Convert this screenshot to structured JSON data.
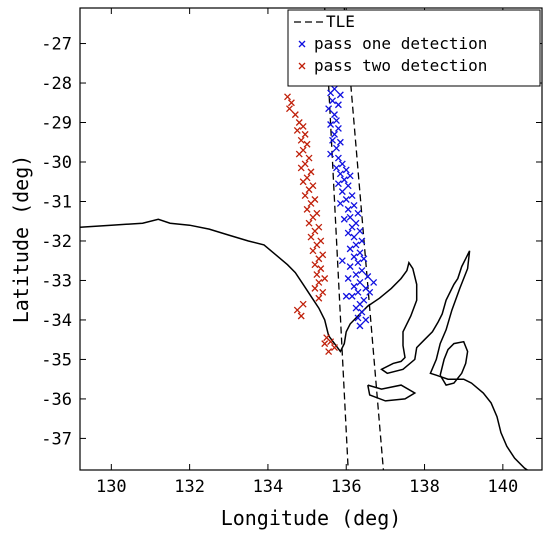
{
  "chart_data": {
    "type": "scatter",
    "title": "",
    "xlabel": "Longitude (deg)",
    "ylabel": "Latitude (deg)",
    "xlim": [
      129.2,
      141.0
    ],
    "ylim": [
      -37.8,
      -26.1
    ],
    "xticks": [
      130,
      132,
      134,
      136,
      138,
      140
    ],
    "yticks": [
      -27,
      -28,
      -29,
      -30,
      -31,
      -32,
      -33,
      -34,
      -35,
      -36,
      -37
    ],
    "grid": false,
    "legend_position": "top-right",
    "legend": [
      {
        "label": "TLE",
        "style": "dashed-line",
        "color": "#000000"
      },
      {
        "label": "pass one detection",
        "style": "x-marker",
        "color": "#1010e0"
      },
      {
        "label": "pass two detection",
        "style": "x-marker",
        "color": "#c0200a"
      }
    ],
    "tle_tracks": [
      {
        "points": [
          [
            135.45,
            -26.1
          ],
          [
            136.05,
            -37.8
          ]
        ]
      },
      {
        "points": [
          [
            135.95,
            -26.1
          ],
          [
            136.95,
            -37.8
          ]
        ]
      }
    ],
    "coastline": [
      [
        [
          129.2,
          -31.65
        ],
        [
          130.0,
          -31.6
        ],
        [
          130.8,
          -31.55
        ],
        [
          131.2,
          -31.45
        ],
        [
          131.5,
          -31.55
        ],
        [
          132.0,
          -31.6
        ],
        [
          132.5,
          -31.7
        ],
        [
          133.0,
          -31.85
        ],
        [
          133.5,
          -32.0
        ],
        [
          133.9,
          -32.1
        ],
        [
          134.2,
          -32.35
        ],
        [
          134.5,
          -32.6
        ],
        [
          134.7,
          -32.8
        ],
        [
          134.9,
          -33.1
        ],
        [
          135.1,
          -33.4
        ],
        [
          135.3,
          -33.7
        ],
        [
          135.45,
          -34.0
        ],
        [
          135.55,
          -34.4
        ],
        [
          135.7,
          -34.6
        ],
        [
          135.85,
          -34.8
        ],
        [
          135.95,
          -34.6
        ],
        [
          136.0,
          -34.3
        ],
        [
          136.1,
          -34.1
        ],
        [
          136.35,
          -33.85
        ],
        [
          136.55,
          -33.65
        ],
        [
          136.85,
          -33.45
        ],
        [
          137.15,
          -33.2
        ],
        [
          137.4,
          -32.95
        ],
        [
          137.55,
          -32.75
        ],
        [
          137.6,
          -32.55
        ],
        [
          137.7,
          -32.7
        ],
        [
          137.8,
          -33.1
        ],
        [
          137.8,
          -33.5
        ],
        [
          137.65,
          -33.9
        ],
        [
          137.45,
          -34.3
        ],
        [
          137.45,
          -34.65
        ],
        [
          137.5,
          -34.95
        ],
        [
          137.4,
          -35.05
        ],
        [
          137.2,
          -35.1
        ],
        [
          136.9,
          -35.25
        ],
        [
          137.05,
          -35.35
        ],
        [
          137.45,
          -35.25
        ],
        [
          137.75,
          -35.0
        ],
        [
          137.8,
          -34.7
        ],
        [
          138.0,
          -34.5
        ],
        [
          138.2,
          -34.3
        ],
        [
          138.35,
          -34.05
        ],
        [
          138.45,
          -33.85
        ],
        [
          138.55,
          -33.5
        ],
        [
          138.75,
          -33.1
        ],
        [
          138.85,
          -32.95
        ],
        [
          138.95,
          -32.65
        ],
        [
          139.05,
          -32.45
        ],
        [
          139.15,
          -32.25
        ],
        [
          139.1,
          -32.7
        ],
        [
          138.9,
          -33.2
        ],
        [
          138.7,
          -33.75
        ],
        [
          138.55,
          -34.25
        ],
        [
          138.4,
          -34.6
        ],
        [
          138.3,
          -35.0
        ],
        [
          138.15,
          -35.35
        ],
        [
          138.3,
          -35.4
        ],
        [
          138.6,
          -35.5
        ],
        [
          139.0,
          -35.5
        ],
        [
          139.2,
          -35.6
        ],
        [
          139.5,
          -35.85
        ],
        [
          139.7,
          -36.1
        ],
        [
          139.85,
          -36.45
        ],
        [
          139.95,
          -36.85
        ],
        [
          140.1,
          -37.2
        ],
        [
          140.3,
          -37.5
        ],
        [
          140.55,
          -37.75
        ],
        [
          140.7,
          -37.85
        ]
      ],
      [
        [
          138.4,
          -35.4
        ],
        [
          138.5,
          -35.0
        ],
        [
          138.6,
          -34.75
        ],
        [
          138.75,
          -34.6
        ],
        [
          139.0,
          -34.55
        ],
        [
          139.1,
          -34.8
        ],
        [
          139.05,
          -35.1
        ],
        [
          138.95,
          -35.35
        ],
        [
          138.75,
          -35.6
        ],
        [
          138.55,
          -35.65
        ],
        [
          138.4,
          -35.4
        ]
      ],
      [
        [
          136.55,
          -35.65
        ],
        [
          136.9,
          -35.75
        ],
        [
          137.4,
          -35.65
        ],
        [
          137.75,
          -35.85
        ],
        [
          137.5,
          -36.0
        ],
        [
          137.0,
          -36.05
        ],
        [
          136.6,
          -35.9
        ],
        [
          136.55,
          -35.65
        ]
      ]
    ],
    "series": [
      {
        "name": "pass one detection",
        "color": "#1010e0",
        "points": [
          [
            135.7,
            -28.15
          ],
          [
            135.6,
            -28.25
          ],
          [
            135.85,
            -28.3
          ],
          [
            135.65,
            -28.45
          ],
          [
            135.8,
            -28.55
          ],
          [
            135.55,
            -28.65
          ],
          [
            135.7,
            -28.8
          ],
          [
            135.75,
            -28.95
          ],
          [
            135.6,
            -29.05
          ],
          [
            135.8,
            -29.15
          ],
          [
            135.7,
            -29.3
          ],
          [
            135.65,
            -29.45
          ],
          [
            135.85,
            -29.5
          ],
          [
            135.75,
            -29.65
          ],
          [
            135.6,
            -29.8
          ],
          [
            135.8,
            -29.9
          ],
          [
            135.9,
            -30.05
          ],
          [
            135.75,
            -30.15
          ],
          [
            136.0,
            -30.2
          ],
          [
            135.85,
            -30.3
          ],
          [
            136.1,
            -30.35
          ],
          [
            135.95,
            -30.45
          ],
          [
            135.8,
            -30.55
          ],
          [
            136.05,
            -30.6
          ],
          [
            135.9,
            -30.75
          ],
          [
            136.15,
            -30.85
          ],
          [
            136.0,
            -30.95
          ],
          [
            135.85,
            -31.05
          ],
          [
            136.2,
            -31.1
          ],
          [
            136.05,
            -31.2
          ],
          [
            136.3,
            -31.3
          ],
          [
            136.1,
            -31.4
          ],
          [
            135.95,
            -31.45
          ],
          [
            136.25,
            -31.55
          ],
          [
            136.15,
            -31.65
          ],
          [
            136.35,
            -31.75
          ],
          [
            136.05,
            -31.8
          ],
          [
            136.2,
            -31.9
          ],
          [
            136.4,
            -32.0
          ],
          [
            136.25,
            -32.1
          ],
          [
            136.1,
            -32.2
          ],
          [
            136.35,
            -32.3
          ],
          [
            136.2,
            -32.4
          ],
          [
            136.45,
            -32.45
          ],
          [
            136.3,
            -32.55
          ],
          [
            136.1,
            -32.65
          ],
          [
            136.4,
            -32.75
          ],
          [
            136.25,
            -32.85
          ],
          [
            136.55,
            -32.9
          ],
          [
            136.05,
            -32.95
          ],
          [
            136.35,
            -33.05
          ],
          [
            136.2,
            -33.15
          ],
          [
            136.5,
            -33.2
          ],
          [
            136.3,
            -33.3
          ],
          [
            136.15,
            -33.4
          ],
          [
            136.45,
            -33.5
          ],
          [
            136.35,
            -33.6
          ],
          [
            136.25,
            -33.7
          ],
          [
            136.4,
            -33.8
          ],
          [
            136.3,
            -33.95
          ],
          [
            136.5,
            -34.0
          ],
          [
            136.35,
            -34.15
          ],
          [
            136.6,
            -33.3
          ],
          [
            136.7,
            -33.05
          ],
          [
            136.0,
            -33.4
          ],
          [
            135.9,
            -32.5
          ]
        ]
      },
      {
        "name": "pass two detection",
        "color": "#c0200a",
        "points": [
          [
            134.5,
            -28.35
          ],
          [
            134.6,
            -28.5
          ],
          [
            134.55,
            -28.65
          ],
          [
            134.7,
            -28.8
          ],
          [
            134.8,
            -29.0
          ],
          [
            134.9,
            -29.1
          ],
          [
            134.75,
            -29.2
          ],
          [
            134.95,
            -29.3
          ],
          [
            134.85,
            -29.45
          ],
          [
            135.0,
            -29.55
          ],
          [
            134.9,
            -29.7
          ],
          [
            134.8,
            -29.8
          ],
          [
            135.05,
            -29.9
          ],
          [
            134.95,
            -30.05
          ],
          [
            134.85,
            -30.15
          ],
          [
            135.1,
            -30.25
          ],
          [
            135.0,
            -30.4
          ],
          [
            134.9,
            -30.5
          ],
          [
            135.15,
            -30.6
          ],
          [
            135.05,
            -30.7
          ],
          [
            134.95,
            -30.85
          ],
          [
            135.2,
            -30.95
          ],
          [
            135.1,
            -31.05
          ],
          [
            135.0,
            -31.2
          ],
          [
            135.25,
            -31.3
          ],
          [
            135.15,
            -31.4
          ],
          [
            135.05,
            -31.55
          ],
          [
            135.3,
            -31.65
          ],
          [
            135.2,
            -31.75
          ],
          [
            135.1,
            -31.9
          ],
          [
            135.35,
            -32.0
          ],
          [
            135.25,
            -32.1
          ],
          [
            135.15,
            -32.25
          ],
          [
            135.4,
            -32.35
          ],
          [
            135.3,
            -32.45
          ],
          [
            135.2,
            -32.6
          ],
          [
            135.35,
            -32.7
          ],
          [
            135.25,
            -32.85
          ],
          [
            135.45,
            -32.95
          ],
          [
            135.3,
            -33.05
          ],
          [
            135.2,
            -33.2
          ],
          [
            135.4,
            -33.3
          ],
          [
            135.3,
            -33.45
          ],
          [
            134.9,
            -33.6
          ],
          [
            134.75,
            -33.75
          ],
          [
            134.85,
            -33.9
          ],
          [
            135.5,
            -34.45
          ],
          [
            135.6,
            -34.55
          ],
          [
            135.45,
            -34.6
          ],
          [
            135.7,
            -34.7
          ],
          [
            135.55,
            -34.8
          ]
        ]
      }
    ]
  }
}
